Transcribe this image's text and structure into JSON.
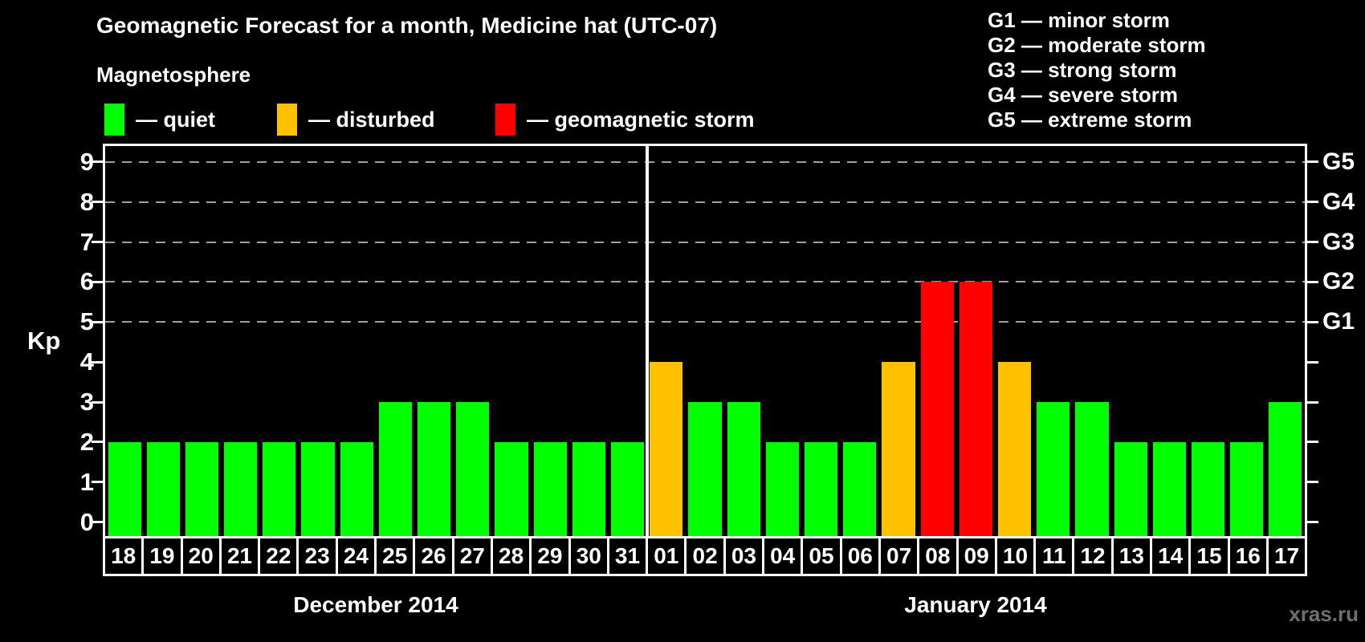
{
  "watermark": "xras.ru",
  "chart_data": {
    "type": "bar",
    "title": "Geomagnetic Forecast for a month, Medicine hat (UTC-07)",
    "subtitle": "Magnetosphere",
    "ylabel": "Kp",
    "ylim": [
      0,
      9
    ],
    "yticks": [
      0,
      1,
      2,
      3,
      4,
      5,
      6,
      7,
      8,
      9
    ],
    "grid": "dashed horizontal lines at Kp 5-9 only",
    "grid_levels": [
      5,
      6,
      7,
      8,
      9
    ],
    "right_axis": [
      {
        "kp": 5,
        "label": "G1"
      },
      {
        "kp": 6,
        "label": "G2"
      },
      {
        "kp": 7,
        "label": "G3"
      },
      {
        "kp": 8,
        "label": "G4"
      },
      {
        "kp": 9,
        "label": "G5"
      }
    ],
    "legend": [
      {
        "status": "quiet",
        "label": "— quiet",
        "color": "#00FF00"
      },
      {
        "status": "disturbed",
        "label": "— disturbed",
        "color": "#FFC200"
      },
      {
        "status": "storm",
        "label": "— geomagnetic storm",
        "color": "#FF0000"
      }
    ],
    "g_scale_legend": [
      "G1 — minor storm",
      "G2 — moderate storm",
      "G3 — strong storm",
      "G4 — severe storm",
      "G5 — extreme storm"
    ],
    "sections": [
      {
        "label": "December 2014",
        "count": 14
      },
      {
        "label": "January 2014",
        "count": 17
      }
    ],
    "points": [
      {
        "day": "18",
        "kp": 2,
        "status": "quiet"
      },
      {
        "day": "19",
        "kp": 2,
        "status": "quiet"
      },
      {
        "day": "20",
        "kp": 2,
        "status": "quiet"
      },
      {
        "day": "21",
        "kp": 2,
        "status": "quiet"
      },
      {
        "day": "22",
        "kp": 2,
        "status": "quiet"
      },
      {
        "day": "23",
        "kp": 2,
        "status": "quiet"
      },
      {
        "day": "24",
        "kp": 2,
        "status": "quiet"
      },
      {
        "day": "25",
        "kp": 3,
        "status": "quiet"
      },
      {
        "day": "26",
        "kp": 3,
        "status": "quiet"
      },
      {
        "day": "27",
        "kp": 3,
        "status": "quiet"
      },
      {
        "day": "28",
        "kp": 2,
        "status": "quiet"
      },
      {
        "day": "29",
        "kp": 2,
        "status": "quiet"
      },
      {
        "day": "30",
        "kp": 2,
        "status": "quiet"
      },
      {
        "day": "31",
        "kp": 2,
        "status": "quiet"
      },
      {
        "day": "01",
        "kp": 4,
        "status": "disturbed"
      },
      {
        "day": "02",
        "kp": 3,
        "status": "quiet"
      },
      {
        "day": "03",
        "kp": 3,
        "status": "quiet"
      },
      {
        "day": "04",
        "kp": 2,
        "status": "quiet"
      },
      {
        "day": "05",
        "kp": 2,
        "status": "quiet"
      },
      {
        "day": "06",
        "kp": 2,
        "status": "quiet"
      },
      {
        "day": "07",
        "kp": 4,
        "status": "disturbed"
      },
      {
        "day": "08",
        "kp": 6,
        "status": "storm"
      },
      {
        "day": "09",
        "kp": 6,
        "status": "storm"
      },
      {
        "day": "10",
        "kp": 4,
        "status": "disturbed"
      },
      {
        "day": "11",
        "kp": 3,
        "status": "quiet"
      },
      {
        "day": "12",
        "kp": 3,
        "status": "quiet"
      },
      {
        "day": "13",
        "kp": 2,
        "status": "quiet"
      },
      {
        "day": "14",
        "kp": 2,
        "status": "quiet"
      },
      {
        "day": "15",
        "kp": 2,
        "status": "quiet"
      },
      {
        "day": "16",
        "kp": 2,
        "status": "quiet"
      },
      {
        "day": "17",
        "kp": 3,
        "status": "quiet"
      }
    ]
  }
}
